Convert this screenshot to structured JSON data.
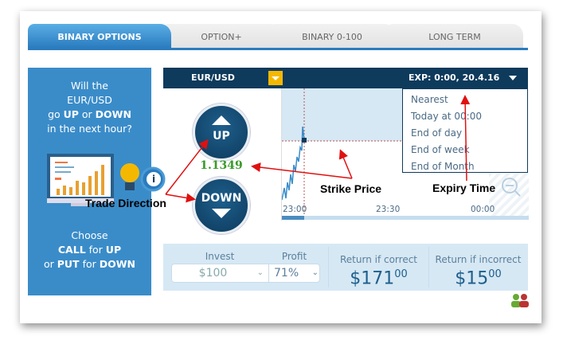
{
  "tabs": [
    {
      "label": "BINARY OPTIONS",
      "active": true
    },
    {
      "label": "OPTION+"
    },
    {
      "label": "BINARY 0-100"
    },
    {
      "label": "LONG TERM"
    }
  ],
  "left_panel": {
    "line1": "Will the",
    "line2": "EUR/USD",
    "line3a": "go ",
    "line3b": "UP",
    "line3c": " or ",
    "line3d": "DOWN",
    "line4": "in the next hour?",
    "c1": "Choose",
    "c2a": "CALL",
    "c2b": " for ",
    "c2c": "UP",
    "c3a": "or ",
    "c3b": "PUT",
    "c3c": " for ",
    "c3d": "DOWN",
    "info_icon": "i"
  },
  "header": {
    "asset": "EUR/USD",
    "expiry": "EXP: 0:00, 20.4.16"
  },
  "buttons": {
    "up": "UP",
    "down": "DOWN"
  },
  "price": "1.1349",
  "expiry_options": [
    "Nearest",
    "Today at 00:00",
    "End of day",
    "End of week",
    "End of Month"
  ],
  "chart": {
    "x_ticks": [
      "23:00",
      "23:30",
      "00:00"
    ]
  },
  "trade": {
    "invest_label": "Invest",
    "invest_value": "$100",
    "profit_label": "Profit",
    "profit_value": "71%",
    "correct_label": "Return if correct",
    "correct_value": "$171",
    "correct_cents": "00",
    "incorrect_label": "Return if incorrect",
    "incorrect_value": "$15",
    "incorrect_cents": "00"
  },
  "annotations": {
    "trade_direction": "Trade Direction",
    "strike_price": "Strike Price",
    "expiry_time": "Expiry Time"
  },
  "colors": {
    "brand_blue": "#3a8cc9",
    "navy": "#0e3a5c",
    "price_green": "#3a9a2a",
    "annotation_red": "#e01010"
  }
}
